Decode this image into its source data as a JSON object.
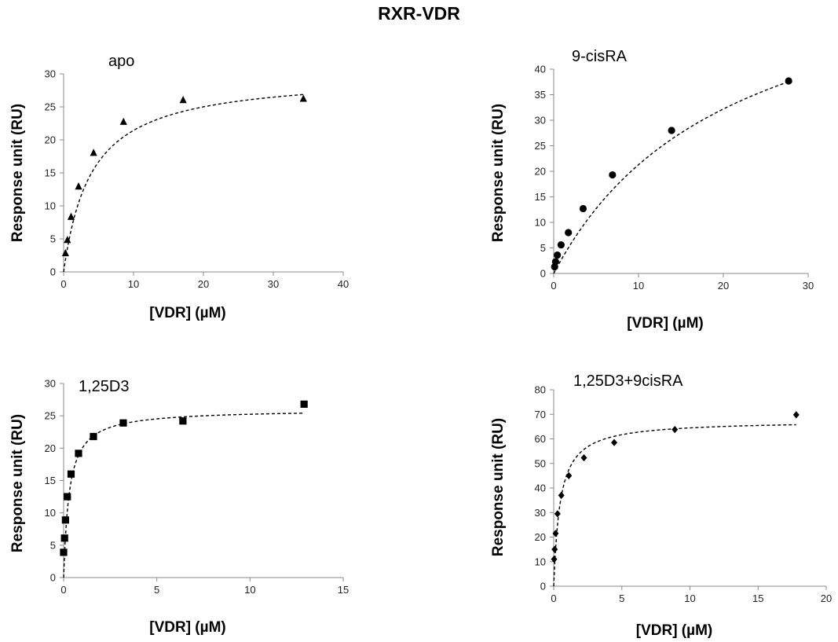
{
  "figure": {
    "title": "RXR-VDR"
  },
  "chart_data": [
    {
      "type": "scatter",
      "title": "apo",
      "xlabel": "[VDR] (µM)",
      "ylabel": "Response unit (RU)",
      "xlim": [
        0,
        40
      ],
      "ylim": [
        0,
        30
      ],
      "xticks": [
        0,
        10,
        20,
        30,
        40
      ],
      "yticks": [
        0,
        5,
        10,
        15,
        20,
        25,
        30
      ],
      "marker": "triangle",
      "x": [
        0.27,
        0.54,
        1.07,
        2.14,
        4.29,
        8.57,
        17.1,
        34.3
      ],
      "y": [
        2.8,
        4.8,
        8.3,
        12.9,
        18.0,
        22.7,
        26.0,
        26.2
      ],
      "fit": {
        "bmax": 30.0,
        "kd": 4.0
      },
      "grid": false
    },
    {
      "type": "scatter",
      "title": "9-cisRA",
      "xlabel": "[VDR] (µM)",
      "ylabel": "Response unit (RU)",
      "xlim": [
        0,
        30
      ],
      "ylim": [
        0,
        40
      ],
      "xticks": [
        0,
        10,
        20,
        30
      ],
      "yticks": [
        0,
        5,
        10,
        15,
        20,
        25,
        30,
        35,
        40
      ],
      "marker": "circle",
      "x": [
        0.11,
        0.22,
        0.43,
        0.87,
        1.73,
        3.47,
        6.93,
        13.9,
        27.7
      ],
      "y": [
        1.3,
        2.3,
        3.6,
        5.6,
        8.0,
        12.7,
        19.3,
        28.0,
        37.7
      ],
      "fit": {
        "bmax": 66.0,
        "kd": 21.0
      },
      "grid": false
    },
    {
      "type": "scatter",
      "title": "1,25D3",
      "xlabel": "[VDR] (µM)",
      "ylabel": "Response unit (RU)",
      "xlim": [
        0,
        15
      ],
      "ylim": [
        0,
        30
      ],
      "xticks": [
        0,
        5,
        10,
        15
      ],
      "yticks": [
        0,
        5,
        10,
        15,
        20,
        25,
        30
      ],
      "marker": "square",
      "x": [
        0.0,
        0.05,
        0.1,
        0.2,
        0.4,
        0.8,
        1.6,
        3.2,
        6.4,
        12.9
      ],
      "y": [
        3.9,
        6.1,
        8.9,
        12.5,
        16.0,
        19.2,
        21.8,
        23.9,
        24.2,
        26.8
      ],
      "fit": {
        "bmax": 26.0,
        "kd": 0.3
      },
      "grid": false
    },
    {
      "type": "scatter",
      "title": "1,25D3+9cisRA",
      "xlabel": "[VDR] (µM)",
      "ylabel": "Response unit (RU)",
      "xlim": [
        0,
        20
      ],
      "ylim": [
        0,
        80
      ],
      "xticks": [
        0,
        5,
        10,
        15,
        20
      ],
      "yticks": [
        0,
        10,
        20,
        30,
        40,
        50,
        60,
        70,
        80
      ],
      "marker": "diamond",
      "x": [
        0.03,
        0.07,
        0.14,
        0.28,
        0.56,
        1.11,
        2.22,
        4.44,
        8.89,
        17.8
      ],
      "y": [
        11.0,
        15.0,
        21.5,
        29.5,
        37.0,
        45.0,
        52.3,
        58.5,
        63.8,
        69.8
      ],
      "fit": {
        "bmax": 67.5,
        "kd": 0.47
      },
      "grid": false
    }
  ]
}
